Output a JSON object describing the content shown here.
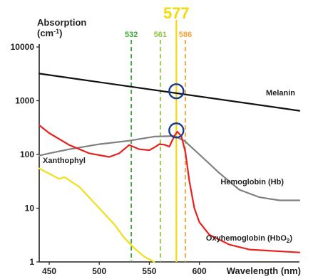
{
  "chart_data": {
    "type": "line",
    "title": "",
    "ylabel": "Absorption",
    "ylabel_unit": "(cm",
    "ylabel_unit_sup": "-1",
    "ylabel_unit_close": ")",
    "xlabel": "Wavelength (nm)",
    "xlim": [
      440,
      700
    ],
    "ylim": [
      1,
      10000
    ],
    "y_scale": "log",
    "x_ticks": [
      "450",
      "500",
      "550",
      "600"
    ],
    "x_tick_values": [
      450,
      500,
      550,
      600
    ],
    "y_ticks": [
      "10000",
      "1000",
      "100",
      "10",
      "1"
    ],
    "y_tick_values": [
      10000,
      1000,
      100,
      10,
      1
    ],
    "grid": false,
    "wavelength_lines": [
      {
        "label": "532",
        "x": 532,
        "color": "#39a935",
        "style": "dashed",
        "emphasis": false
      },
      {
        "label": "561",
        "x": 561,
        "color": "#8dc63f",
        "style": "dashed",
        "emphasis": false
      },
      {
        "label": "577",
        "x": 577,
        "color": "#f5d90a",
        "style": "solid",
        "emphasis": true
      },
      {
        "label": "586",
        "x": 586,
        "color": "#f7a234",
        "style": "dashed",
        "emphasis": false
      }
    ],
    "series": [
      {
        "name": "Melanin",
        "color": "#111111",
        "x": [
          440,
          700
        ],
        "y": [
          3200,
          650
        ]
      },
      {
        "name": "Hemoglobin (Hb)",
        "color": "#808080",
        "x": [
          440,
          450,
          470,
          500,
          530,
          555,
          575,
          585,
          600,
          620,
          640,
          660,
          680,
          700
        ],
        "y": [
          95,
          105,
          125,
          155,
          180,
          215,
          220,
          180,
          100,
          45,
          22,
          16,
          14,
          14
        ]
      },
      {
        "name": "Oxyhemoglobin (HbO",
        "name_sub": "2",
        "name_close": ")",
        "color": "#e8201f",
        "x": [
          440,
          450,
          470,
          490,
          510,
          520,
          530,
          540,
          550,
          555,
          560,
          565,
          570,
          575,
          578,
          582,
          586,
          590,
          595,
          600,
          610,
          630,
          650,
          700
        ],
        "y": [
          350,
          250,
          150,
          105,
          90,
          105,
          150,
          125,
          120,
          135,
          155,
          152,
          140,
          220,
          265,
          220,
          110,
          32,
          10,
          5.5,
          3.2,
          2.1,
          1.7,
          1.5
        ]
      },
      {
        "name": "Xanthophyl",
        "color": "#f0df1a",
        "x": [
          440,
          460,
          465,
          480,
          500,
          515,
          525,
          535,
          545,
          555
        ],
        "y": [
          55,
          35,
          38,
          25,
          10,
          5,
          2.8,
          1.8,
          1.25,
          1.0
        ]
      }
    ],
    "markers": [
      {
        "shape": "circle",
        "x": 577,
        "y": 1500,
        "color": "#1a3a8f"
      },
      {
        "shape": "circle",
        "x": 577,
        "y": 280,
        "color": "#1a3a8f"
      }
    ]
  }
}
